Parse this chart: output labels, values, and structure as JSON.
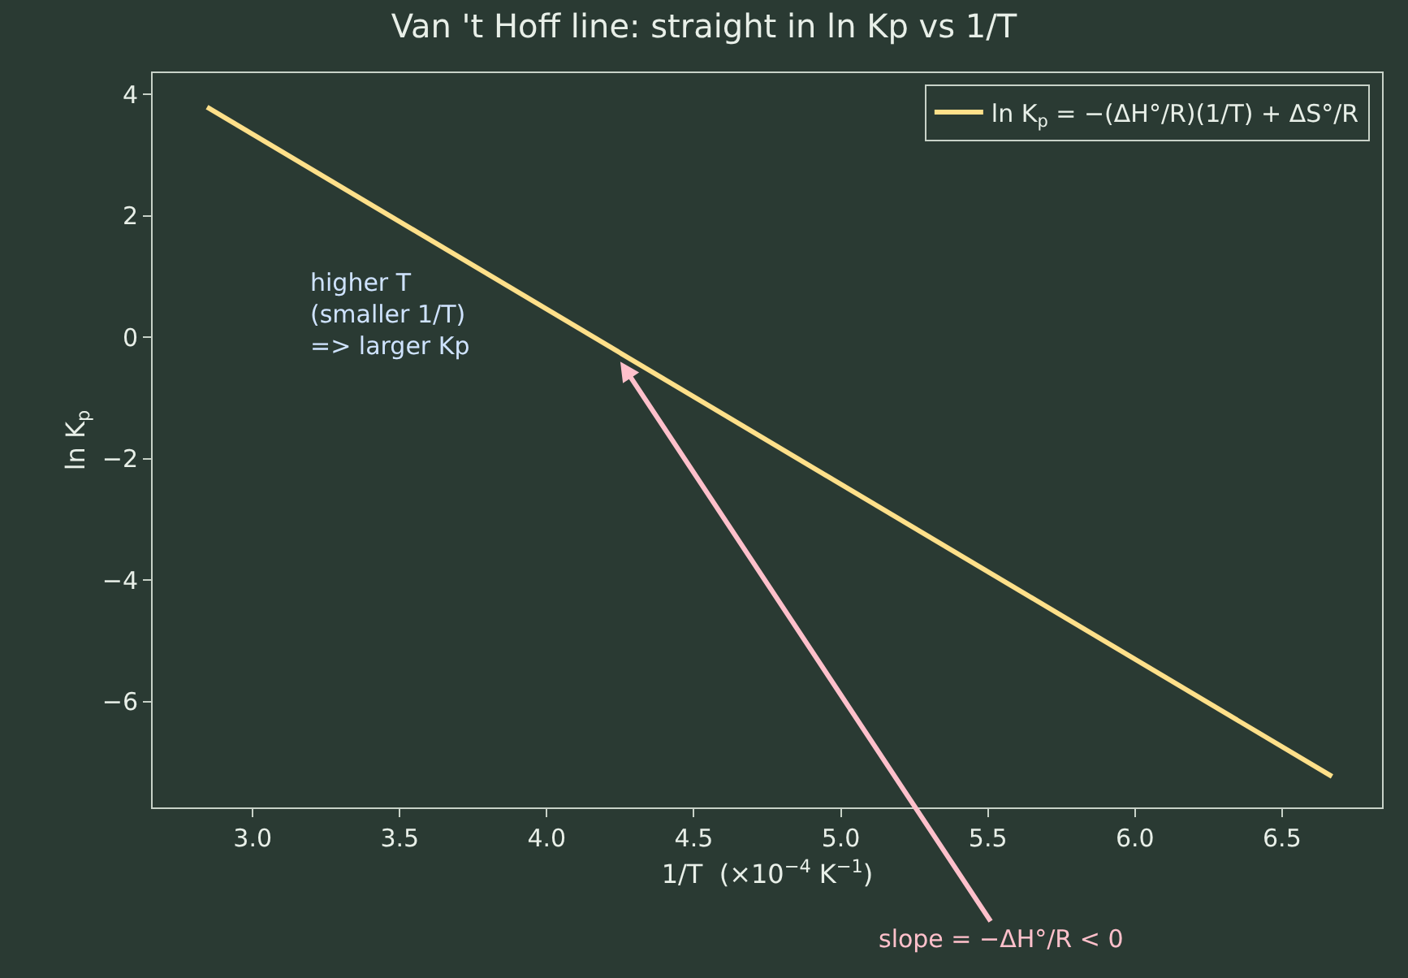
{
  "chart_data": {
    "type": "line",
    "title": "Van 't Hoff line: straight in ln Kp vs 1/T",
    "xlabel": "1/T  (×10$^{−4}$ K$^{−1}$)",
    "ylabel": "ln K$_{p}$",
    "x": [
      2.845,
      6.67
    ],
    "series": [
      {
        "name": "ln K$_{p}$ = −(ΔH°/R)(1/T) + ΔS°/R",
        "color": "#ffe08a",
        "values": [
          3.79,
          -7.23
        ]
      }
    ],
    "xlim": [
      2.66,
      6.84
    ],
    "ylim": [
      -7.74,
      4.35
    ],
    "xticks": [
      {
        "value": 3.0,
        "label": "3.0"
      },
      {
        "value": 3.5,
        "label": "3.5"
      },
      {
        "value": 4.0,
        "label": "4.0"
      },
      {
        "value": 4.5,
        "label": "4.5"
      },
      {
        "value": 5.0,
        "label": "5.0"
      },
      {
        "value": 5.5,
        "label": "5.5"
      },
      {
        "value": 6.0,
        "label": "6.0"
      },
      {
        "value": 6.5,
        "label": "6.5"
      }
    ],
    "yticks": [
      {
        "value": 4,
        "label": "4"
      },
      {
        "value": 2,
        "label": "2"
      },
      {
        "value": 0,
        "label": "0"
      },
      {
        "value": -2,
        "label": "−2"
      },
      {
        "value": -4,
        "label": "−4"
      },
      {
        "value": -6,
        "label": "−6"
      }
    ],
    "annotations": [
      "higher T\n(smaller 1/T)\n=> larger Kp",
      {
        "text": "slope = −ΔH°/R < 0",
        "x": 4.25,
        "y": -0.4
      }
    ],
    "grid": false,
    "legend": "top right",
    "marker": "none",
    "line_style": "solid"
  }
}
